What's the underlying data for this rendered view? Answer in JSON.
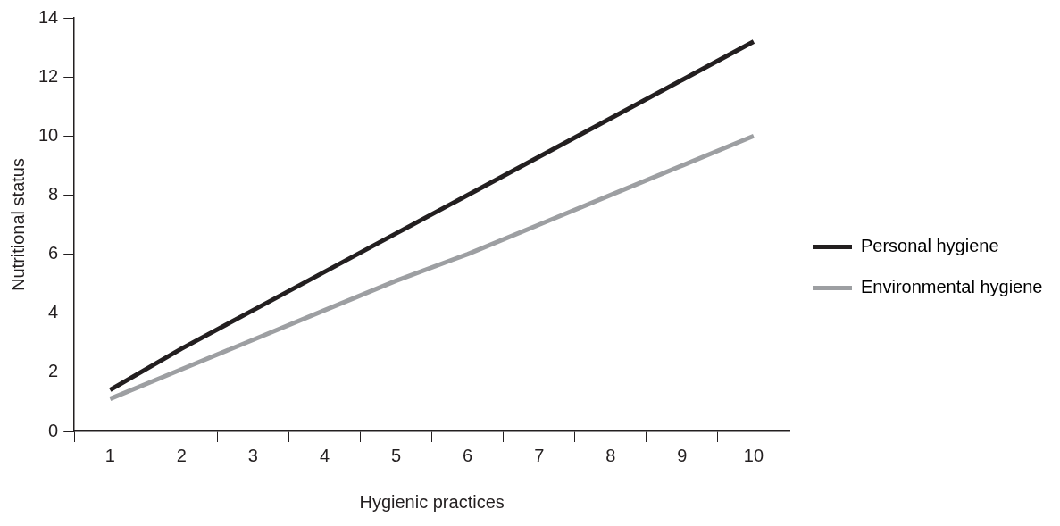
{
  "chart_data": {
    "type": "line",
    "xlabel": "Hygienic practices",
    "ylabel": "Nutritional status",
    "categories": [
      "1",
      "2",
      "3",
      "4",
      "5",
      "6",
      "7",
      "8",
      "9",
      "10"
    ],
    "series": [
      {
        "name": "Personal hygiene",
        "color": "#231f20",
        "values": [
          1.4,
          2.8,
          4.1,
          5.4,
          6.7,
          8.0,
          9.3,
          10.6,
          11.9,
          13.2
        ]
      },
      {
        "name": "Environmental hygiene",
        "color": "#9d9fa2",
        "values": [
          1.1,
          2.1,
          3.1,
          4.1,
          5.1,
          6.0,
          7.0,
          8.0,
          9.0,
          10.0
        ]
      }
    ],
    "ylim": [
      0,
      14
    ],
    "yticks": [
      0,
      2,
      4,
      6,
      8,
      10,
      12,
      14
    ],
    "grid": false,
    "legend": "right",
    "marker": "none",
    "line_style": "solid"
  }
}
